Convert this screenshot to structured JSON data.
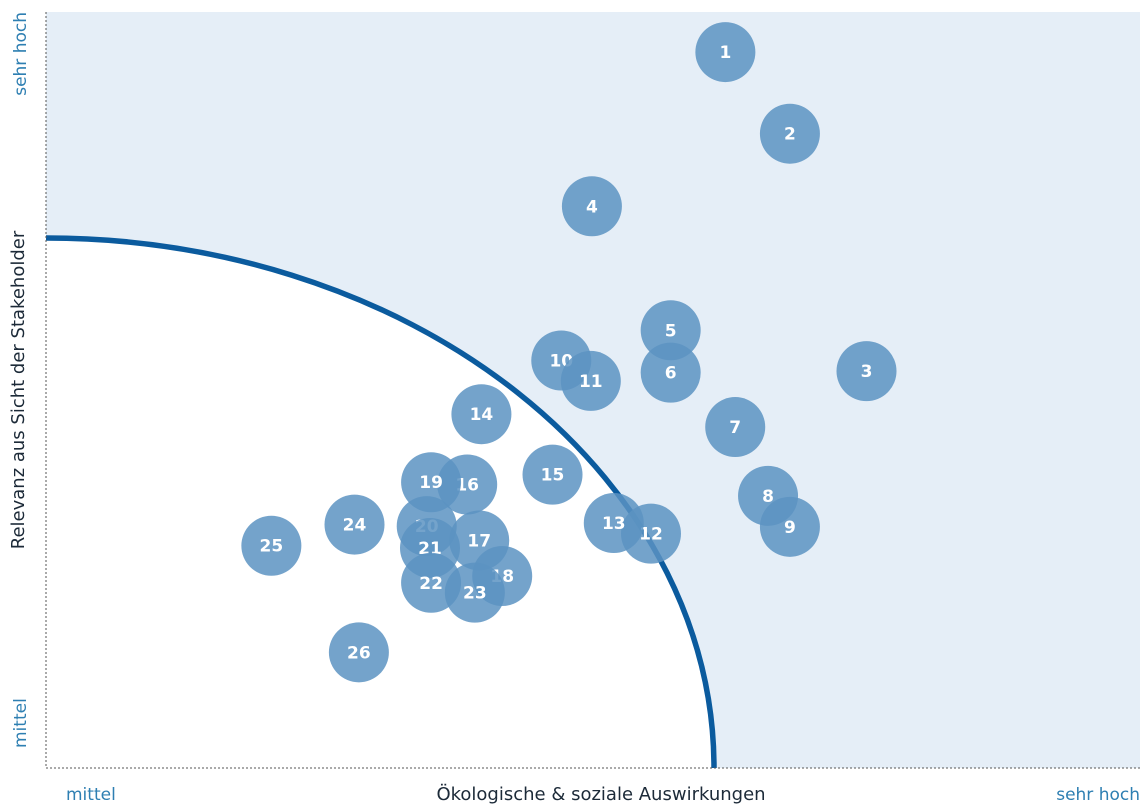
{
  "chart_data": {
    "type": "scatter",
    "title": "",
    "xlabel": "Ökologische & soziale Auswirkungen",
    "ylabel": "Relevanz aus Sicht der Stakeholder",
    "x_ticks": [
      "mittel",
      "sehr hoch"
    ],
    "y_ticks": [
      "mittel",
      "sehr hoch"
    ],
    "xlim": [
      0,
      100
    ],
    "ylim": [
      0,
      100
    ],
    "grid": false,
    "threshold": "quarter-circle centred at the bottom-left corner, radius about 88% of the x-range",
    "points": [
      {
        "label": "1",
        "x": 62.1,
        "y": 94.7
      },
      {
        "label": "2",
        "x": 68.0,
        "y": 83.9
      },
      {
        "label": "3",
        "x": 75.0,
        "y": 52.5
      },
      {
        "label": "4",
        "x": 49.9,
        "y": 74.3
      },
      {
        "label": "5",
        "x": 57.1,
        "y": 57.9
      },
      {
        "label": "6",
        "x": 57.1,
        "y": 52.3
      },
      {
        "label": "7",
        "x": 63.0,
        "y": 45.1
      },
      {
        "label": "8",
        "x": 66.0,
        "y": 36.0
      },
      {
        "label": "9",
        "x": 68.0,
        "y": 31.9
      },
      {
        "label": "10",
        "x": 47.1,
        "y": 53.9
      },
      {
        "label": "11",
        "x": 49.8,
        "y": 51.2
      },
      {
        "label": "12",
        "x": 55.3,
        "y": 31.0
      },
      {
        "label": "13",
        "x": 51.9,
        "y": 32.4
      },
      {
        "label": "14",
        "x": 39.8,
        "y": 46.8
      },
      {
        "label": "15",
        "x": 46.3,
        "y": 38.8
      },
      {
        "label": "16",
        "x": 38.5,
        "y": 37.5
      },
      {
        "label": "17",
        "x": 39.6,
        "y": 30.1
      },
      {
        "label": "18",
        "x": 41.7,
        "y": 25.4
      },
      {
        "label": "19",
        "x": 35.2,
        "y": 37.8
      },
      {
        "label": "20",
        "x": 34.8,
        "y": 32.0
      },
      {
        "label": "21",
        "x": 35.1,
        "y": 29.1
      },
      {
        "label": "22",
        "x": 35.2,
        "y": 24.5
      },
      {
        "label": "23",
        "x": 39.2,
        "y": 23.2
      },
      {
        "label": "24",
        "x": 28.2,
        "y": 32.2
      },
      {
        "label": "25",
        "x": 20.6,
        "y": 29.4
      },
      {
        "label": "26",
        "x": 28.6,
        "y": 15.3
      }
    ],
    "colors": {
      "background_region": "#e5eef7",
      "threshold_line": "#0b5b9e",
      "bubble": "#5c93c2",
      "bubble_text": "#ffffff",
      "axis_title": "#1c2a38",
      "tick_text": "#2e7fb2"
    }
  }
}
